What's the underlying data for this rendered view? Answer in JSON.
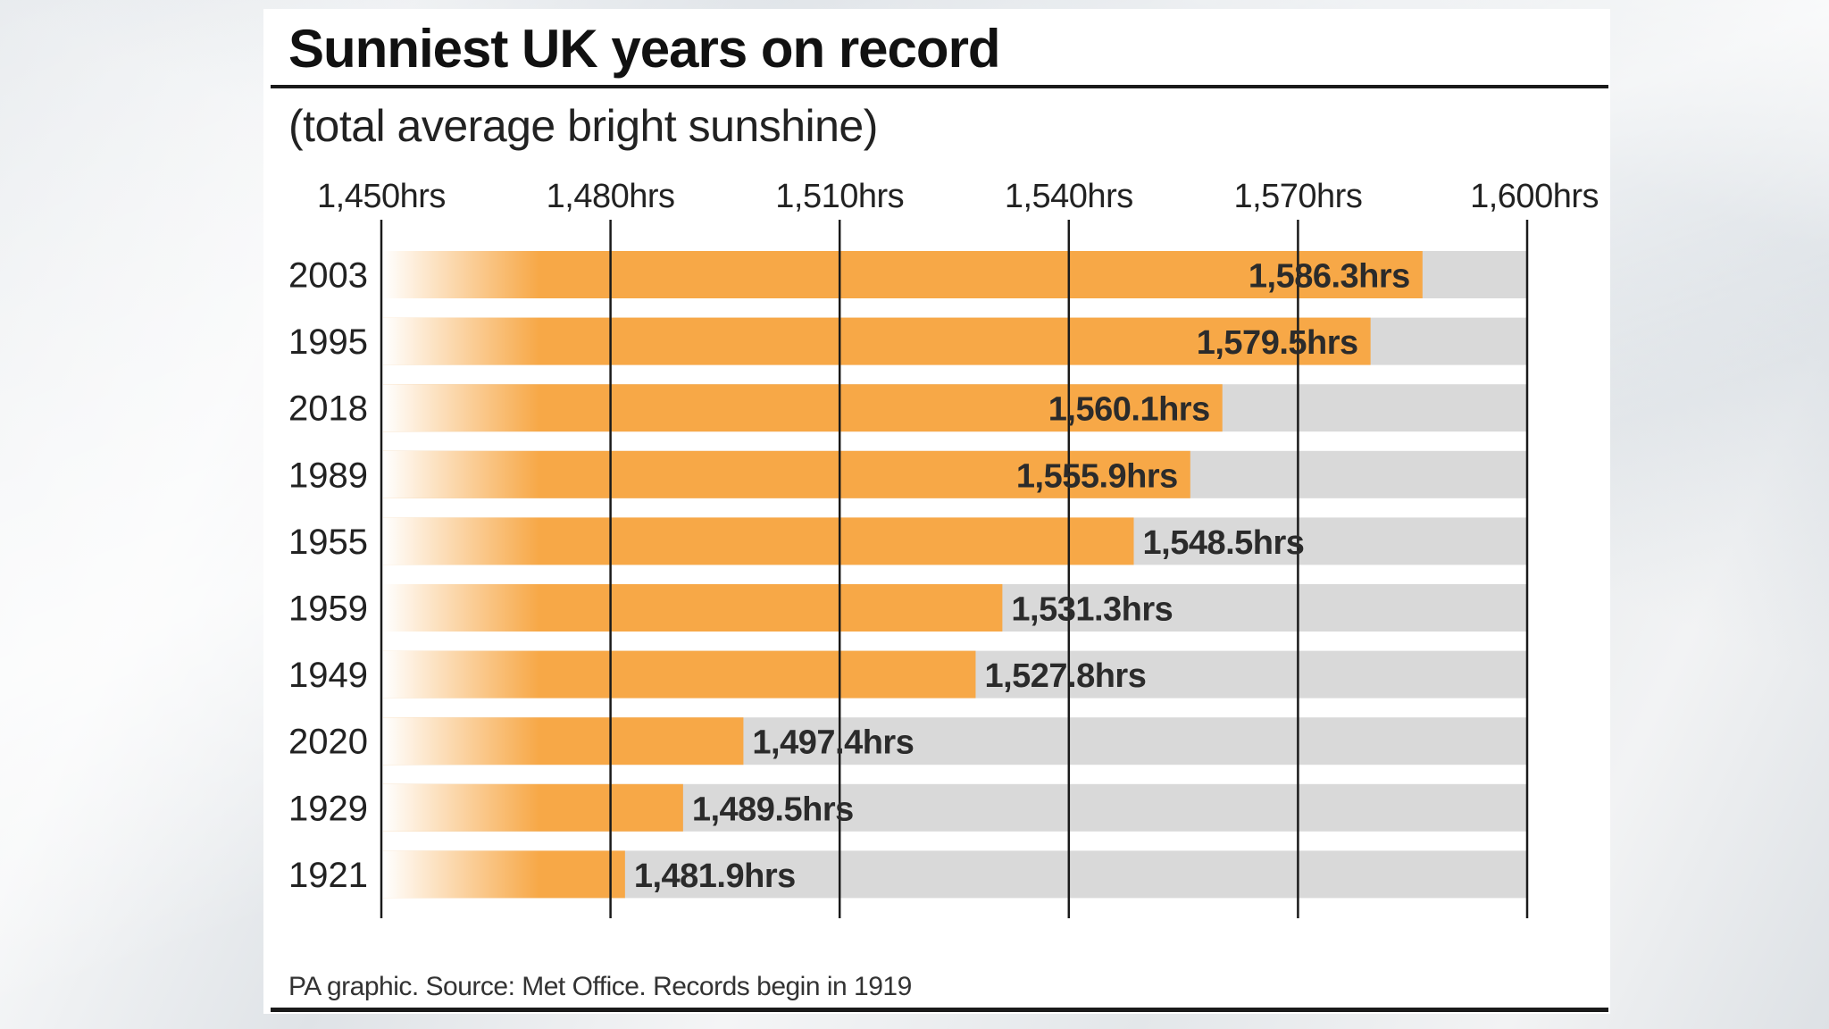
{
  "chart_data": {
    "type": "bar",
    "orientation": "horizontal",
    "title": "Sunniest UK years on record",
    "subtitle": "(total average bright sunshine)",
    "categories": [
      "2003",
      "1995",
      "2018",
      "1989",
      "1955",
      "1959",
      "1949",
      "2020",
      "1929",
      "1921"
    ],
    "values": [
      1586.3,
      1579.5,
      1560.1,
      1555.9,
      1548.5,
      1531.3,
      1527.8,
      1497.4,
      1489.5,
      1481.9
    ],
    "value_labels": [
      "1,586.3hrs",
      "1,579.5hrs",
      "1,560.1hrs",
      "1,555.9hrs",
      "1,548.5hrs",
      "1,531.3hrs",
      "1,527.8hrs",
      "1,497.4hrs",
      "1,489.5hrs",
      "1,481.9hrs"
    ],
    "xlim": [
      1450,
      1600
    ],
    "x_ticks": [
      1450,
      1480,
      1510,
      1540,
      1570,
      1600
    ],
    "x_tick_labels": [
      "1,450hrs",
      "1,480hrs",
      "1,510hrs",
      "1,540hrs",
      "1,570hrs",
      "1,600hrs"
    ],
    "axis_position": "top",
    "grid": true,
    "bar_color": "#f7a847",
    "track_color": "#d9d9d9"
  },
  "footer": {
    "source": "PA graphic. Source: Met Office. Records begin in 1919"
  }
}
